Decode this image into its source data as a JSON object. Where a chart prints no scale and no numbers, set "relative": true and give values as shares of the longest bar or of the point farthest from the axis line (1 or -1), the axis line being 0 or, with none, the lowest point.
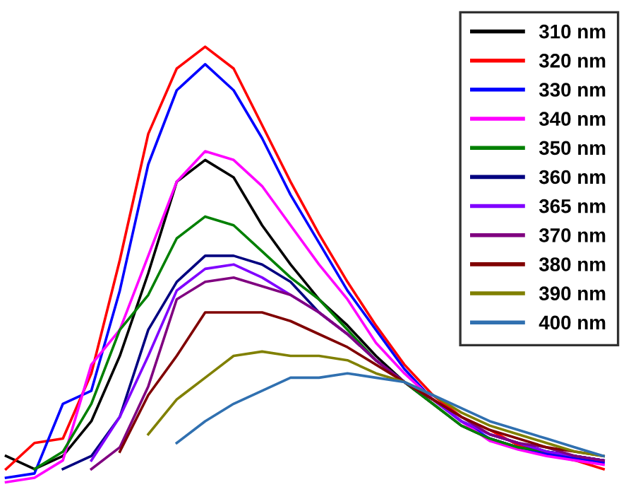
{
  "chart_data": {
    "type": "line",
    "relative": true,
    "legend": "top right",
    "grid": false,
    "marker": "none",
    "line_style": "solid",
    "categories": [
      null,
      null,
      null,
      null,
      null,
      null,
      null,
      null,
      null,
      null,
      null,
      null,
      null,
      null,
      null,
      null,
      null,
      null,
      null,
      null,
      null,
      null
    ],
    "series": [
      {
        "name": "310 nm",
        "color": "#000000",
        "values": [
          0.06,
          0.03,
          0.06,
          0.14,
          0.29,
          0.48,
          0.69,
          0.74,
          0.7,
          0.59,
          0.5,
          0.42,
          0.36,
          0.29,
          0.23,
          0.18,
          0.13,
          0.1,
          0.08,
          0.07,
          0.06,
          0.05
        ]
      },
      {
        "name": "320 nm",
        "color": "#ff0000",
        "values": [
          0.03,
          0.09,
          0.1,
          0.25,
          0.51,
          0.8,
          0.95,
          1,
          0.95,
          0.82,
          0.69,
          0.57,
          0.46,
          0.36,
          0.27,
          0.2,
          0.15,
          0.12,
          0.085,
          0.065,
          0.05,
          0.03
        ]
      },
      {
        "name": "330 nm",
        "color": "#0000ff",
        "values": [
          0.01,
          0.02,
          0.18,
          0.21,
          0.44,
          0.73,
          0.9,
          0.96,
          0.9,
          0.79,
          0.66,
          0.55,
          0.44,
          0.35,
          0.26,
          0.19,
          0.14,
          0.1,
          0.08,
          0.065,
          0.055,
          0.045
        ]
      },
      {
        "name": "340 nm",
        "color": "#ff00ff",
        "values": [
          0,
          0.01,
          0.05,
          0.27,
          0.35,
          0.52,
          0.69,
          0.76,
          0.74,
          0.68,
          0.59,
          0.5,
          0.42,
          0.32,
          0.25,
          0.19,
          0.14,
          0.095,
          0.075,
          0.06,
          0.05,
          0.04
        ]
      },
      {
        "name": "350 nm",
        "color": "#008000",
        "values": [
          null,
          0.03,
          0.07,
          0.18,
          0.35,
          0.43,
          0.56,
          0.61,
          0.59,
          0.53,
          0.47,
          0.42,
          0.35,
          0.28,
          0.23,
          0.18,
          0.13,
          0.1,
          0.08,
          0.07,
          0.06,
          0.05
        ]
      },
      {
        "name": "360 nm",
        "color": "#000080",
        "values": [
          null,
          null,
          0.03,
          0.06,
          0.15,
          0.35,
          0.46,
          0.52,
          0.52,
          0.5,
          0.46,
          0.39,
          0.34,
          0.28,
          0.23,
          0.19,
          0.14,
          0.11,
          0.09,
          0.07,
          0.06,
          0.05
        ]
      },
      {
        "name": "365 nm",
        "color": "#8000ff",
        "values": [
          null,
          null,
          null,
          0.05,
          0.15,
          0.29,
          0.44,
          0.49,
          0.5,
          0.47,
          0.43,
          0.39,
          0.34,
          0.28,
          0.23,
          0.19,
          0.14,
          0.11,
          0.09,
          0.07,
          0.06,
          0.05
        ]
      },
      {
        "name": "370 nm",
        "color": "#800080",
        "values": [
          null,
          null,
          null,
          0.03,
          0.08,
          0.22,
          0.42,
          0.46,
          0.47,
          0.45,
          0.43,
          0.39,
          0.34,
          0.28,
          0.23,
          0.19,
          0.15,
          0.11,
          0.09,
          0.08,
          0.06,
          0.05
        ]
      },
      {
        "name": "380 nm",
        "color": "#800000",
        "values": [
          null,
          null,
          null,
          null,
          0.07,
          0.2,
          0.29,
          0.39,
          0.39,
          0.39,
          0.37,
          0.34,
          0.31,
          0.27,
          0.23,
          0.19,
          0.15,
          0.12,
          0.1,
          0.08,
          0.07,
          0.06
        ]
      },
      {
        "name": "390 nm",
        "color": "#808000",
        "values": [
          null,
          null,
          null,
          null,
          null,
          0.11,
          0.19,
          0.24,
          0.29,
          0.3,
          0.29,
          0.29,
          0.28,
          0.25,
          0.23,
          0.2,
          0.16,
          0.13,
          0.11,
          0.09,
          0.07,
          0.06
        ]
      },
      {
        "name": "400 nm",
        "color": "#3070b0",
        "values": [
          null,
          null,
          null,
          null,
          null,
          null,
          0.09,
          0.14,
          0.18,
          0.21,
          0.24,
          0.24,
          0.25,
          0.24,
          0.23,
          0.2,
          0.17,
          0.14,
          0.12,
          0.1,
          0.08,
          0.06
        ]
      }
    ]
  }
}
